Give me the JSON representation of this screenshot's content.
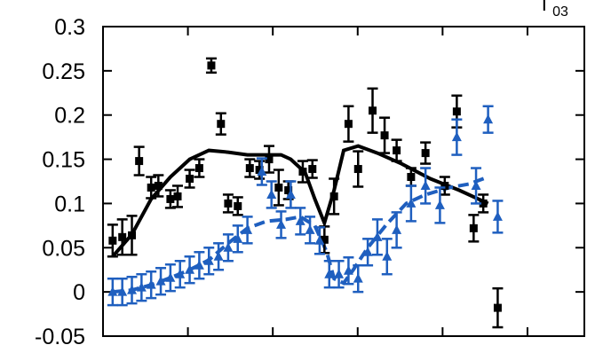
{
  "chart_data": {
    "type": "scatter",
    "corner_label": {
      "main": "Γ",
      "sub": "03"
    },
    "title": "",
    "xlabel": "",
    "ylabel": "",
    "xlim": [
      0,
      1
    ],
    "ylim": [
      -0.05,
      0.3
    ],
    "y_ticks": [
      "-0.05",
      "0",
      "0.05",
      "0.1",
      "0.15",
      "0.2",
      "0.25",
      "0.3"
    ],
    "grid": false,
    "colors": {
      "black": "#000000",
      "blue": "#1f5fbf"
    },
    "series": [
      {
        "marker": "square",
        "color": "#000000",
        "points": [
          {
            "x": 0.02,
            "y": 0.058,
            "err": 0.018
          },
          {
            "x": 0.04,
            "y": 0.062,
            "err": 0.02
          },
          {
            "x": 0.06,
            "y": 0.064,
            "err": 0.022
          },
          {
            "x": 0.075,
            "y": 0.148,
            "err": 0.016
          },
          {
            "x": 0.1,
            "y": 0.118,
            "err": 0.012
          },
          {
            "x": 0.115,
            "y": 0.12,
            "err": 0.012
          },
          {
            "x": 0.14,
            "y": 0.105,
            "err": 0.01
          },
          {
            "x": 0.155,
            "y": 0.108,
            "err": 0.012
          },
          {
            "x": 0.18,
            "y": 0.128,
            "err": 0.01
          },
          {
            "x": 0.2,
            "y": 0.14,
            "err": 0.01
          },
          {
            "x": 0.225,
            "y": 0.256,
            "err": 0.008
          },
          {
            "x": 0.245,
            "y": 0.19,
            "err": 0.012
          },
          {
            "x": 0.26,
            "y": 0.1,
            "err": 0.01
          },
          {
            "x": 0.28,
            "y": 0.097,
            "err": 0.01
          },
          {
            "x": 0.305,
            "y": 0.14,
            "err": 0.01
          },
          {
            "x": 0.325,
            "y": 0.138,
            "err": 0.01
          },
          {
            "x": 0.345,
            "y": 0.15,
            "err": 0.015
          },
          {
            "x": 0.365,
            "y": 0.118,
            "err": 0.02
          },
          {
            "x": 0.385,
            "y": 0.115,
            "err": 0.01
          },
          {
            "x": 0.415,
            "y": 0.136,
            "err": 0.012
          },
          {
            "x": 0.435,
            "y": 0.139,
            "err": 0.01
          },
          {
            "x": 0.46,
            "y": 0.059,
            "err": 0.015
          },
          {
            "x": 0.48,
            "y": 0.108,
            "err": 0.02
          },
          {
            "x": 0.51,
            "y": 0.19,
            "err": 0.02
          },
          {
            "x": 0.53,
            "y": 0.139,
            "err": 0.02
          },
          {
            "x": 0.56,
            "y": 0.205,
            "err": 0.025
          },
          {
            "x": 0.585,
            "y": 0.177,
            "err": 0.02
          },
          {
            "x": 0.61,
            "y": 0.16,
            "err": 0.012
          },
          {
            "x": 0.64,
            "y": 0.13,
            "err": 0.01
          },
          {
            "x": 0.67,
            "y": 0.157,
            "err": 0.012
          },
          {
            "x": 0.71,
            "y": 0.12,
            "err": 0.01
          },
          {
            "x": 0.735,
            "y": 0.204,
            "err": 0.018
          },
          {
            "x": 0.77,
            "y": 0.072,
            "err": 0.015
          },
          {
            "x": 0.79,
            "y": 0.1,
            "err": 0.01
          },
          {
            "x": 0.82,
            "y": -0.018,
            "err": 0.022
          }
        ]
      },
      {
        "marker": "triangle",
        "color": "#1f5fbf",
        "points": [
          {
            "x": 0.02,
            "y": 0.0,
            "err": 0.015
          },
          {
            "x": 0.04,
            "y": 0.0,
            "err": 0.015
          },
          {
            "x": 0.06,
            "y": 0.002,
            "err": 0.015
          },
          {
            "x": 0.08,
            "y": 0.005,
            "err": 0.015
          },
          {
            "x": 0.1,
            "y": 0.008,
            "err": 0.015
          },
          {
            "x": 0.12,
            "y": 0.012,
            "err": 0.015
          },
          {
            "x": 0.14,
            "y": 0.016,
            "err": 0.015
          },
          {
            "x": 0.16,
            "y": 0.02,
            "err": 0.015
          },
          {
            "x": 0.18,
            "y": 0.025,
            "err": 0.015
          },
          {
            "x": 0.2,
            "y": 0.03,
            "err": 0.015
          },
          {
            "x": 0.22,
            "y": 0.035,
            "err": 0.015
          },
          {
            "x": 0.24,
            "y": 0.04,
            "err": 0.015
          },
          {
            "x": 0.26,
            "y": 0.05,
            "err": 0.015
          },
          {
            "x": 0.28,
            "y": 0.06,
            "err": 0.015
          },
          {
            "x": 0.3,
            "y": 0.07,
            "err": 0.015
          },
          {
            "x": 0.33,
            "y": 0.136,
            "err": 0.015
          },
          {
            "x": 0.35,
            "y": 0.11,
            "err": 0.015
          },
          {
            "x": 0.37,
            "y": 0.076,
            "err": 0.015
          },
          {
            "x": 0.39,
            "y": 0.11,
            "err": 0.015
          },
          {
            "x": 0.41,
            "y": 0.08,
            "err": 0.015
          },
          {
            "x": 0.43,
            "y": 0.07,
            "err": 0.015
          },
          {
            "x": 0.45,
            "y": 0.058,
            "err": 0.015
          },
          {
            "x": 0.47,
            "y": 0.02,
            "err": 0.015
          },
          {
            "x": 0.49,
            "y": 0.02,
            "err": 0.015
          },
          {
            "x": 0.51,
            "y": 0.024,
            "err": 0.015
          },
          {
            "x": 0.53,
            "y": 0.015,
            "err": 0.015
          },
          {
            "x": 0.55,
            "y": 0.045,
            "err": 0.015
          },
          {
            "x": 0.57,
            "y": 0.062,
            "err": 0.02
          },
          {
            "x": 0.59,
            "y": 0.04,
            "err": 0.02
          },
          {
            "x": 0.61,
            "y": 0.07,
            "err": 0.02
          },
          {
            "x": 0.64,
            "y": 0.1,
            "err": 0.02
          },
          {
            "x": 0.67,
            "y": 0.12,
            "err": 0.02
          },
          {
            "x": 0.7,
            "y": 0.098,
            "err": 0.02
          },
          {
            "x": 0.735,
            "y": 0.175,
            "err": 0.02
          },
          {
            "x": 0.775,
            "y": 0.12,
            "err": 0.02
          },
          {
            "x": 0.8,
            "y": 0.195,
            "err": 0.015
          },
          {
            "x": 0.82,
            "y": 0.085,
            "err": 0.018
          }
        ]
      }
    ],
    "curves": [
      {
        "style": "solid",
        "color": "#000000",
        "points": [
          [
            0.02,
            0.04
          ],
          [
            0.06,
            0.065
          ],
          [
            0.1,
            0.105
          ],
          [
            0.14,
            0.13
          ],
          [
            0.18,
            0.15
          ],
          [
            0.22,
            0.16
          ],
          [
            0.26,
            0.158
          ],
          [
            0.3,
            0.155
          ],
          [
            0.34,
            0.155
          ],
          [
            0.37,
            0.155
          ],
          [
            0.39,
            0.15
          ],
          [
            0.42,
            0.135
          ],
          [
            0.44,
            0.105
          ],
          [
            0.46,
            0.078
          ],
          [
            0.48,
            0.115
          ],
          [
            0.5,
            0.16
          ],
          [
            0.53,
            0.165
          ],
          [
            0.57,
            0.157
          ],
          [
            0.62,
            0.145
          ],
          [
            0.68,
            0.128
          ],
          [
            0.74,
            0.115
          ],
          [
            0.8,
            0.1
          ]
        ]
      },
      {
        "style": "dashed",
        "color": "#1f5fbf",
        "points": [
          [
            0.02,
            0.0
          ],
          [
            0.06,
            0.002
          ],
          [
            0.1,
            0.008
          ],
          [
            0.14,
            0.016
          ],
          [
            0.18,
            0.025
          ],
          [
            0.22,
            0.036
          ],
          [
            0.26,
            0.055
          ],
          [
            0.3,
            0.072
          ],
          [
            0.34,
            0.08
          ],
          [
            0.38,
            0.082
          ],
          [
            0.41,
            0.085
          ],
          [
            0.44,
            0.075
          ],
          [
            0.465,
            0.045
          ],
          [
            0.48,
            0.015
          ],
          [
            0.5,
            0.01
          ],
          [
            0.52,
            0.025
          ],
          [
            0.55,
            0.05
          ],
          [
            0.59,
            0.077
          ],
          [
            0.63,
            0.1
          ],
          [
            0.67,
            0.11
          ],
          [
            0.72,
            0.118
          ],
          [
            0.76,
            0.122
          ],
          [
            0.8,
            0.13
          ]
        ]
      }
    ]
  }
}
